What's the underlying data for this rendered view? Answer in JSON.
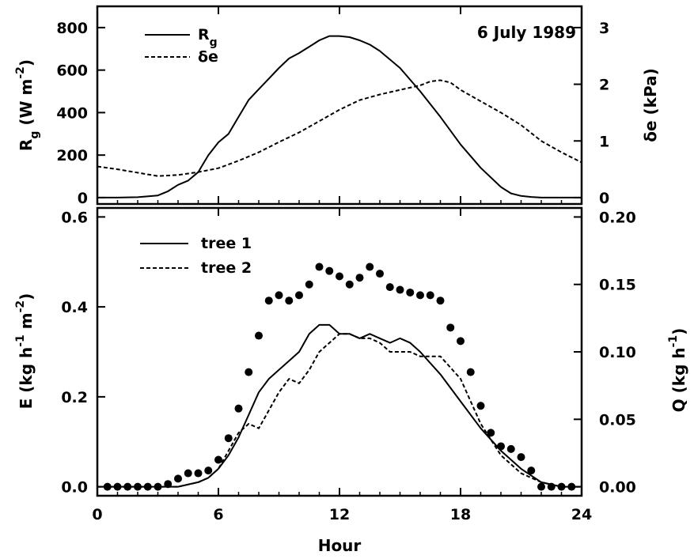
{
  "chart_data": [
    {
      "type": "line",
      "annotation": "6 July 1989",
      "xlim": [
        0,
        24
      ],
      "xticks": [
        "0",
        "6",
        "12",
        "18",
        "24"
      ],
      "ylabel": "R",
      "ylabel_sub": "g",
      "ylabel_unit": "(W m",
      "ylabel_unit_sup": "-2",
      "ylabel_unit_close": ")",
      "ylim": [
        -30,
        900
      ],
      "yticks": [
        "0",
        "200",
        "400",
        "600",
        "800"
      ],
      "y2label": "δe (kPa)",
      "y2lim": [
        -0.1125,
        3.375
      ],
      "y2ticks": [
        "0",
        "1",
        "2",
        "3"
      ],
      "series": [
        {
          "name": "R",
          "name_sub": "g",
          "axis": "left",
          "style": "solid",
          "x": [
            0,
            1,
            2,
            3,
            3.5,
            4,
            4.5,
            5,
            5.5,
            6,
            6.5,
            7,
            7.5,
            8,
            8.5,
            9,
            9.5,
            10,
            10.5,
            11,
            11.5,
            12,
            12.5,
            13,
            13.5,
            14,
            15,
            16,
            17,
            18,
            19,
            20,
            20.5,
            21,
            21.5,
            22,
            23,
            24
          ],
          "values": [
            0,
            0,
            2,
            10,
            30,
            60,
            80,
            120,
            200,
            260,
            300,
            380,
            460,
            510,
            560,
            610,
            655,
            680,
            710,
            740,
            760,
            760,
            755,
            740,
            720,
            690,
            610,
            500,
            380,
            250,
            140,
            50,
            20,
            8,
            3,
            0,
            0,
            0
          ]
        },
        {
          "name": "δe",
          "axis": "right",
          "style": "dashed",
          "x": [
            0,
            1,
            2,
            3,
            4,
            5,
            6,
            7,
            8,
            9,
            10,
            11,
            12,
            13,
            14,
            15,
            16,
            16.5,
            17,
            17.5,
            18,
            19,
            20,
            21,
            22,
            23,
            24
          ],
          "values": [
            0.55,
            0.5,
            0.44,
            0.38,
            0.4,
            0.45,
            0.52,
            0.65,
            0.8,
            0.98,
            1.15,
            1.35,
            1.55,
            1.72,
            1.82,
            1.9,
            1.98,
            2.05,
            2.07,
            2.03,
            1.9,
            1.7,
            1.5,
            1.28,
            1.0,
            0.8,
            0.62
          ]
        }
      ]
    },
    {
      "type": "line",
      "xlim": [
        0,
        24
      ],
      "xticks": [
        "0",
        "6",
        "12",
        "18",
        "24"
      ],
      "xlabel": "Hour",
      "ylabel": "E (kg h",
      "ylabel_sup1": "-1",
      "ylabel_mid": " m",
      "ylabel_sup2": "-2",
      "ylabel_close": ")",
      "ylim": [
        -0.02,
        0.62
      ],
      "yticks": [
        "0.0",
        "0.2",
        "0.4",
        "0.6"
      ],
      "y2label": "Q (kg h",
      "y2label_sup": "-1",
      "y2label_close": ")",
      "y2lim": [
        -0.00667,
        0.2067
      ],
      "y2ticks": [
        "0.00",
        "0.05",
        "0.10",
        "0.15",
        "0.20"
      ],
      "series": [
        {
          "name": "tree 1",
          "axis": "left",
          "style": "solid",
          "x": [
            0,
            1,
            2,
            3,
            4,
            5,
            5.5,
            6,
            6.5,
            7,
            7.5,
            8,
            8.5,
            9,
            9.5,
            10,
            10.5,
            11,
            11.5,
            12,
            12.5,
            13,
            13.5,
            14,
            14.5,
            15,
            15.5,
            16,
            17,
            18,
            19,
            20,
            21,
            22,
            23,
            24
          ],
          "values": [
            0.0,
            0.0,
            0.0,
            0.0,
            0.0,
            0.01,
            0.02,
            0.04,
            0.07,
            0.11,
            0.16,
            0.21,
            0.24,
            0.26,
            0.28,
            0.3,
            0.34,
            0.36,
            0.36,
            0.34,
            0.34,
            0.33,
            0.34,
            0.33,
            0.32,
            0.33,
            0.32,
            0.3,
            0.25,
            0.19,
            0.13,
            0.08,
            0.04,
            0.01,
            0.0,
            0.0
          ]
        },
        {
          "name": "tree 2",
          "axis": "left",
          "style": "dashed",
          "x": [
            0,
            1,
            2,
            3,
            4,
            5,
            5.5,
            6,
            6.5,
            7,
            7.5,
            8,
            8.5,
            9,
            9.5,
            10,
            10.5,
            11,
            11.5,
            12,
            12.5,
            13,
            13.5,
            14,
            14.5,
            15,
            15.5,
            16,
            17,
            18,
            19,
            20,
            21,
            22,
            23,
            24
          ],
          "values": [
            0.0,
            0.0,
            0.0,
            0.0,
            0.0,
            0.01,
            0.02,
            0.04,
            0.08,
            0.12,
            0.14,
            0.13,
            0.17,
            0.21,
            0.24,
            0.23,
            0.26,
            0.3,
            0.32,
            0.34,
            0.34,
            0.33,
            0.33,
            0.32,
            0.3,
            0.3,
            0.3,
            0.29,
            0.29,
            0.24,
            0.14,
            0.07,
            0.03,
            0.01,
            0.0,
            0.0
          ]
        },
        {
          "name": "Q",
          "axis": "right",
          "style": "markers",
          "x": [
            0.5,
            1,
            1.5,
            2,
            2.5,
            3,
            3.5,
            4,
            4.5,
            5,
            5.5,
            6,
            6.5,
            7,
            7.5,
            8,
            8.5,
            9,
            9.5,
            10,
            10.5,
            11,
            11.5,
            12,
            12.5,
            13,
            13.5,
            14,
            14.5,
            15,
            15.5,
            16,
            16.5,
            17,
            17.5,
            18,
            18.5,
            19,
            19.5,
            20,
            20.5,
            21,
            21.5,
            22,
            22.5,
            23,
            23.5
          ],
          "values": [
            0.0,
            0.0,
            0.0,
            0.0,
            0.0,
            0.0,
            0.002,
            0.006,
            0.01,
            0.01,
            0.012,
            0.02,
            0.036,
            0.058,
            0.085,
            0.112,
            0.138,
            0.142,
            0.138,
            0.142,
            0.15,
            0.163,
            0.16,
            0.156,
            0.15,
            0.155,
            0.163,
            0.158,
            0.148,
            0.146,
            0.144,
            0.142,
            0.142,
            0.138,
            0.118,
            0.108,
            0.085,
            0.06,
            0.04,
            0.03,
            0.028,
            0.022,
            0.012,
            0.0,
            0.0,
            0.0,
            0.0
          ]
        }
      ]
    }
  ]
}
